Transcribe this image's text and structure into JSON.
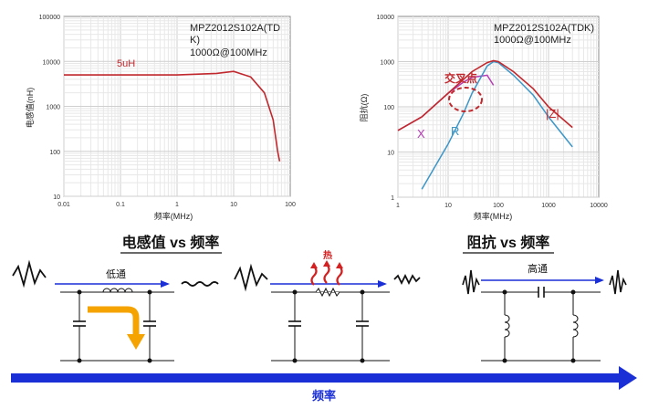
{
  "charts": [
    {
      "part_number": "MPZ2012S102A(TDK)",
      "part_line1": "MPZ2012S102A(TD",
      "part_line2": "K)",
      "spec": "1000Ω@100MHz",
      "ylabel": "电感值(nH)",
      "xlabel": "频率(MHz)",
      "y_ticks": [
        "10",
        "100",
        "1000",
        "10000",
        "100000"
      ],
      "x_ticks": [
        "0.01",
        "0.1",
        "1",
        "10",
        "100"
      ],
      "series_label": "5uH",
      "series_color": "#c0282d"
    },
    {
      "part_number": "MPZ2012S102A(TDK)",
      "spec": "1000Ω@100MHz",
      "ylabel": "阻抗(Ω)",
      "xlabel": "频率(MHz)",
      "y_ticks": [
        "1",
        "10",
        "100",
        "1000",
        "10000"
      ],
      "x_ticks": [
        "1",
        "10",
        "100",
        "1000",
        "10000"
      ],
      "annotation": "交叉点",
      "series": [
        {
          "name": "X",
          "color": "#b43cb4"
        },
        {
          "name": "R",
          "color": "#3c96c8"
        },
        {
          "name": "|Z|",
          "color": "#c0282d"
        }
      ]
    }
  ],
  "chart_data": [
    {
      "type": "line",
      "x": [
        0.01,
        0.1,
        1,
        5,
        10,
        20,
        35,
        50,
        60,
        65
      ],
      "series": [
        {
          "name": "5uH",
          "values": [
            5000,
            5000,
            5000,
            5400,
            6000,
            4500,
            2000,
            500,
            100,
            60
          ]
        }
      ],
      "xlabel": "频率(MHz)",
      "ylabel": "电感值(nH)",
      "xlim": [
        0.01,
        100
      ],
      "ylim": [
        10,
        100000
      ],
      "scale": "log-log"
    },
    {
      "type": "line",
      "x": [
        1,
        3,
        10,
        20,
        30,
        60,
        80,
        100,
        200,
        500,
        1000,
        3000
      ],
      "series": [
        {
          "name": "X",
          "values": [
            30,
            60,
            200,
            350,
            450,
            500,
            300,
            null,
            null,
            null,
            null,
            null
          ]
        },
        {
          "name": "R",
          "values": [
            null,
            1.5,
            15,
            70,
            200,
            800,
            1000,
            950,
            500,
            180,
            60,
            13
          ]
        },
        {
          "name": "|Z|",
          "values": [
            30,
            60,
            200,
            400,
            600,
            950,
            1050,
            1000,
            600,
            250,
            100,
            35
          ]
        }
      ],
      "xlabel": "频率(MHz)",
      "ylabel": "阻抗(Ω)",
      "xlim": [
        1,
        10000
      ],
      "ylim": [
        1,
        10000
      ],
      "scale": "log-log"
    }
  ],
  "sections": {
    "left_title": "电感值 vs 频率",
    "right_title": "阻抗 vs 频率",
    "lowpass": "低通",
    "heat": "热",
    "highpass": "高通",
    "freq_axis": "频率"
  },
  "colors": {
    "arrow_blue": "#1a2fd6",
    "flow_orange": "#f5a300",
    "heat_red": "#d42020",
    "text_red": "#c0282d"
  }
}
